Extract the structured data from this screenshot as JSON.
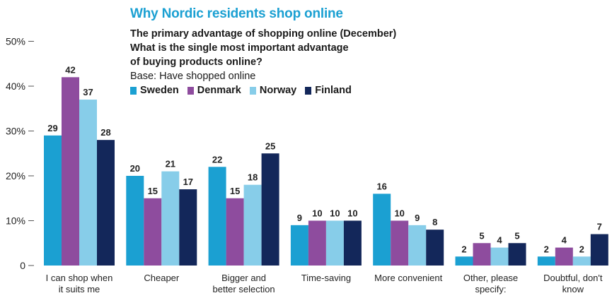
{
  "colors": {
    "title": "#1ba0d2",
    "Sweden": "#1ba0d2",
    "Denmark": "#8e4c9e",
    "Norway": "#87cde9",
    "Finland": "#13275a"
  },
  "chart_data": {
    "type": "bar",
    "title": "Why Nordic residents shop online",
    "subtitle_lines": [
      "The primary advantage of shopping online (December)",
      "What is the single most important advantage",
      "of buying products online?"
    ],
    "base": "Base: Have shopped online",
    "ylim": [
      0,
      50
    ],
    "yticks": [
      {
        "value": 0,
        "label": "0"
      },
      {
        "value": 10,
        "label": "10%"
      },
      {
        "value": 20,
        "label": "20%"
      },
      {
        "value": 30,
        "label": "30%"
      },
      {
        "value": 40,
        "label": "40%"
      },
      {
        "value": 50,
        "label": "50%"
      }
    ],
    "categories": [
      [
        "I can shop when",
        "it suits me"
      ],
      [
        "Cheaper"
      ],
      [
        "Bigger and",
        "better selection"
      ],
      [
        "Time-saving"
      ],
      [
        "More convenient"
      ],
      [
        "Other, please",
        "specify:"
      ],
      [
        "Doubtful, don't",
        "know"
      ]
    ],
    "series": [
      {
        "name": "Sweden",
        "values": [
          29,
          20,
          22,
          9,
          16,
          2,
          2
        ]
      },
      {
        "name": "Denmark",
        "values": [
          42,
          15,
          15,
          10,
          10,
          5,
          4
        ]
      },
      {
        "name": "Norway",
        "values": [
          37,
          21,
          18,
          10,
          9,
          4,
          2
        ]
      },
      {
        "name": "Finland",
        "values": [
          28,
          17,
          25,
          10,
          8,
          5,
          7
        ]
      }
    ],
    "legend_position": "top",
    "grid": false
  }
}
